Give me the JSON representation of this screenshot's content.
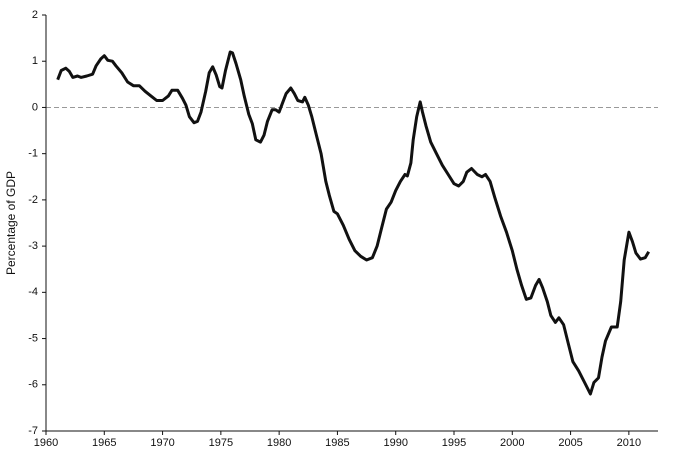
{
  "chart_data": {
    "type": "line",
    "y_label": "Percentage of GDP",
    "x": [
      1961.0,
      1961.3,
      1961.7,
      1962.0,
      1962.3,
      1962.7,
      1963.0,
      1963.5,
      1964.0,
      1964.3,
      1964.7,
      1965.0,
      1965.3,
      1965.7,
      1966.0,
      1966.5,
      1967.0,
      1967.5,
      1968.0,
      1968.5,
      1969.0,
      1969.5,
      1970.0,
      1970.5,
      1970.8,
      1971.3,
      1971.7,
      1972.0,
      1972.3,
      1972.7,
      1973.0,
      1973.3,
      1973.7,
      1974.0,
      1974.3,
      1974.6,
      1974.9,
      1975.1,
      1975.4,
      1975.8,
      1976.0,
      1976.3,
      1976.7,
      1977.0,
      1977.4,
      1977.7,
      1978.0,
      1978.4,
      1978.7,
      1979.0,
      1979.4,
      1979.7,
      1980.0,
      1980.3,
      1980.6,
      1981.0,
      1981.3,
      1981.6,
      1982.0,
      1982.2,
      1982.5,
      1982.8,
      1983.2,
      1983.6,
      1984.0,
      1984.3,
      1984.7,
      1985.0,
      1985.5,
      1986.0,
      1986.5,
      1987.0,
      1987.5,
      1988.0,
      1988.4,
      1988.8,
      1989.2,
      1989.6,
      1990.0,
      1990.4,
      1990.8,
      1991.0,
      1991.3,
      1991.5,
      1991.8,
      1992.1,
      1992.3,
      1992.6,
      1993.0,
      1993.5,
      1994.0,
      1994.5,
      1995.0,
      1995.4,
      1995.8,
      1996.1,
      1996.5,
      1997.0,
      1997.4,
      1997.7,
      1998.1,
      1998.5,
      1999.0,
      1999.5,
      2000.0,
      2000.4,
      2000.8,
      2001.2,
      2001.6,
      2002.0,
      2002.3,
      2002.6,
      2003.0,
      2003.3,
      2003.7,
      2004.0,
      2004.4,
      2004.8,
      2005.2,
      2005.7,
      2006.2,
      2006.7,
      2007.0,
      2007.4,
      2007.7,
      2008.0,
      2008.5,
      2009.0,
      2009.3,
      2009.6,
      2010.0,
      2010.3,
      2010.6,
      2011.0,
      2011.4,
      2011.7
    ],
    "series": [
      {
        "color": "#111111",
        "values": [
          0.6,
          0.8,
          0.85,
          0.78,
          0.65,
          0.68,
          0.65,
          0.68,
          0.72,
          0.9,
          1.05,
          1.12,
          1.02,
          1.0,
          0.9,
          0.75,
          0.55,
          0.47,
          0.47,
          0.35,
          0.25,
          0.15,
          0.15,
          0.25,
          0.37,
          0.37,
          0.2,
          0.05,
          -0.2,
          -0.33,
          -0.3,
          -0.1,
          0.35,
          0.75,
          0.88,
          0.7,
          0.45,
          0.42,
          0.8,
          1.2,
          1.18,
          0.95,
          0.6,
          0.25,
          -0.15,
          -0.35,
          -0.7,
          -0.75,
          -0.6,
          -0.3,
          -0.05,
          -0.05,
          -0.1,
          0.1,
          0.3,
          0.42,
          0.3,
          0.15,
          0.12,
          0.22,
          0.05,
          -0.2,
          -0.6,
          -1.0,
          -1.6,
          -1.9,
          -2.25,
          -2.3,
          -2.55,
          -2.85,
          -3.1,
          -3.22,
          -3.3,
          -3.25,
          -3.0,
          -2.6,
          -2.2,
          -2.05,
          -1.8,
          -1.6,
          -1.45,
          -1.48,
          -1.2,
          -0.7,
          -0.2,
          0.12,
          -0.1,
          -0.4,
          -0.75,
          -1.0,
          -1.25,
          -1.45,
          -1.65,
          -1.7,
          -1.6,
          -1.4,
          -1.32,
          -1.45,
          -1.5,
          -1.45,
          -1.6,
          -1.95,
          -2.35,
          -2.7,
          -3.1,
          -3.5,
          -3.85,
          -4.15,
          -4.12,
          -3.85,
          -3.72,
          -3.9,
          -4.2,
          -4.5,
          -4.65,
          -4.55,
          -4.7,
          -5.1,
          -5.5,
          -5.7,
          -5.95,
          -6.2,
          -5.95,
          -5.85,
          -5.4,
          -5.05,
          -4.75,
          -4.75,
          -4.2,
          -3.3,
          -2.7,
          -2.9,
          -3.15,
          -3.28,
          -3.25,
          -3.12
        ]
      }
    ],
    "xlim": [
      1960,
      2012.5
    ],
    "xticks": [
      1960,
      1965,
      1970,
      1975,
      1980,
      1985,
      1990,
      1995,
      2000,
      2005,
      2010
    ],
    "ylim": [
      -7,
      2
    ],
    "yticks": [
      2,
      1,
      0,
      -1,
      -2,
      -3,
      -4,
      -5,
      -6,
      -7
    ],
    "reference_line": 0,
    "reference_color": "#999999"
  }
}
